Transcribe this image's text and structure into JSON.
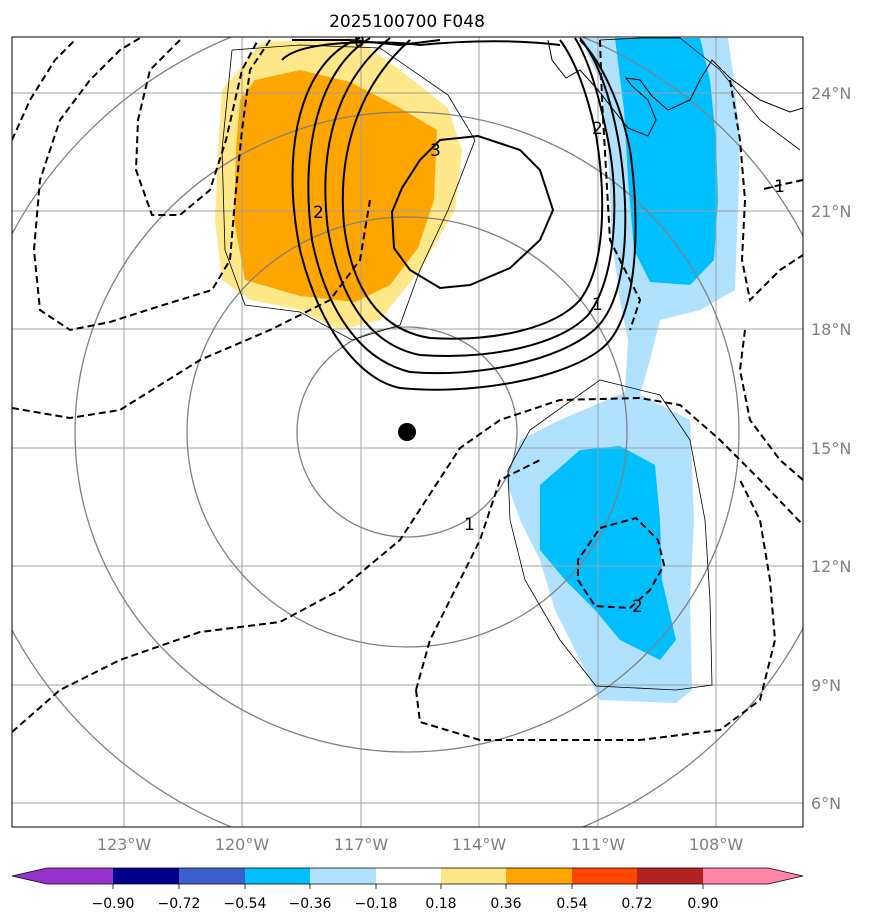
{
  "title": "2025100700 F048",
  "chart_data": {
    "type": "contour",
    "title": "2025100700 F048",
    "map": {
      "lon_range": [
        -126,
        -106
      ],
      "lat_range": [
        5.5,
        25.5
      ],
      "gridlines": true,
      "coastlines": true
    },
    "x_ticks": [
      "123°W",
      "120°W",
      "117°W",
      "114°W",
      "111°W",
      "108°W"
    ],
    "y_ticks": [
      "24°N",
      "21°N",
      "18°N",
      "15°N",
      "12°N",
      "9°N",
      "6°N"
    ],
    "storm_center": {
      "lon": -115.8,
      "lat": 15.4
    },
    "contour_labels": [
      "0",
      "2",
      "3",
      "2",
      "1",
      "1",
      "2",
      "-1"
    ],
    "colorbar": {
      "ticks": [
        "−0.90",
        "−0.72",
        "−0.54",
        "−0.36",
        "−0.18",
        "0.18",
        "0.36",
        "0.54",
        "0.72",
        "0.90"
      ],
      "extend": "both",
      "colors": [
        "#9932cc",
        "#00008b",
        "#3a5fcd",
        "#00bfff",
        "#b0e2ff",
        "#ffffff",
        "#ffe88a",
        "#ffa500",
        "#ff4500",
        "#b22222",
        "#ff85a9"
      ]
    },
    "shaded_regions": [
      {
        "level": "0.18 to 0.36",
        "color": "#ffe88a",
        "area": "northwest of center, 17.5°N–25.5°N, 121°W–114°W"
      },
      {
        "level": "0.36 to 0.54",
        "color": "#ffa500",
        "area": "19°N–24.5°N, 120.5°W–115.5°W"
      },
      {
        "level": "-0.36 to -0.18",
        "color": "#b0e2ff",
        "area": "east side, 8.5°N–25.5°N, 113°W–108.5°W"
      },
      {
        "level": "-0.54 to -0.36",
        "color": "#00bfff",
        "area": "19.5°N–25.5°N and 10°N–15°N near 112°W–109°W"
      }
    ]
  }
}
